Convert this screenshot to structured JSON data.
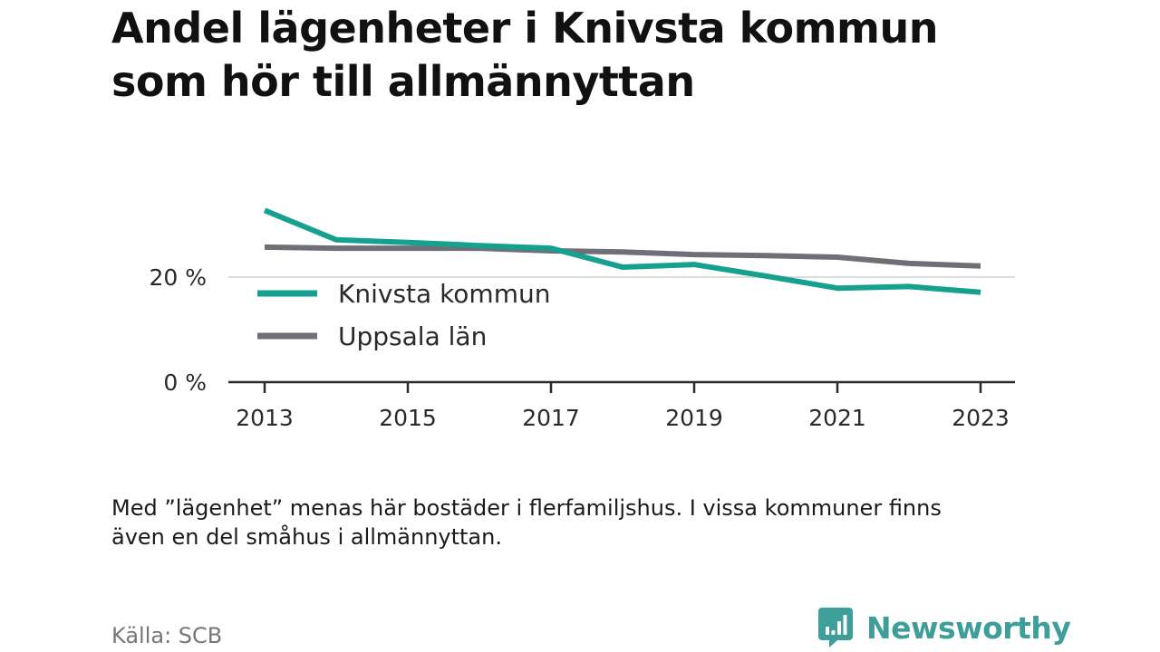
{
  "title_lines": [
    "Andel lägenheter i Knivsta kommun",
    "som hör till allmännyttan"
  ],
  "note_lines": [
    "Med ”lägenhet” menas här bostäder i flerfamiljshus. I vissa kommuner finns",
    "även en del småhus i allmännyttan."
  ],
  "source": "Källa: SCB",
  "brand": {
    "name": "Newsworthy",
    "icon": "newsworthy-logo-icon",
    "color": "#3e9e9a"
  },
  "chart_data": {
    "type": "line",
    "title": "Andel lägenheter i Knivsta kommun som hör till allmännyttan",
    "xlabel": "",
    "ylabel": "",
    "x": [
      2013,
      2014,
      2015,
      2016,
      2017,
      2018,
      2019,
      2020,
      2021,
      2022,
      2023
    ],
    "xticks": [
      2013,
      2015,
      2017,
      2019,
      2021,
      2023
    ],
    "yticks": [
      {
        "value": 0,
        "label": "0 %"
      },
      {
        "value": 20,
        "label": "20 %"
      }
    ],
    "ylim": [
      0,
      32
    ],
    "grid": "horizontal",
    "legend_placement": "inside-left",
    "series": [
      {
        "name": "Knivsta kommun",
        "color": "#16a08f",
        "values": [
          32.7,
          27.1,
          26.6,
          26.0,
          25.5,
          21.9,
          22.4,
          20.2,
          17.9,
          18.2,
          17.1
        ]
      },
      {
        "name": "Uppsala län",
        "color": "#6f6f76",
        "values": [
          25.7,
          25.5,
          25.5,
          25.5,
          25.0,
          24.8,
          24.3,
          24.1,
          23.8,
          22.6,
          22.1
        ]
      }
    ]
  }
}
